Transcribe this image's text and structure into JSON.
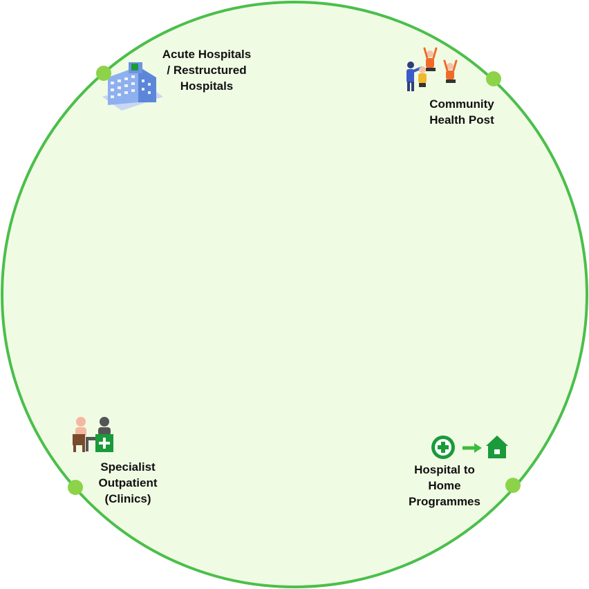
{
  "colors": {
    "ring": "#4bbf4b",
    "fill": "#f0fbe4",
    "dot": "#8cd34a",
    "brand_green": "#1a9a3a",
    "arrow_green": "#3dbb3d"
  },
  "nodes": [
    {
      "id": "acute-hospitals",
      "lines": [
        "Acute Hospitals",
        "/ Restructured",
        "Hospitals"
      ],
      "icon": "hospital-building-icon"
    },
    {
      "id": "community-health-post",
      "lines": [
        "Community",
        "Health Post"
      ],
      "icon": "exercise-group-icon"
    },
    {
      "id": "specialist-outpatient",
      "lines": [
        "Specialist",
        "Outpatient",
        "(Clinics)"
      ],
      "icon": "clinic-consultation-icon"
    },
    {
      "id": "hospital-to-home",
      "lines": [
        "Hospital to",
        "Home",
        "Programmes"
      ],
      "icon": "hospital-to-home-icon"
    }
  ]
}
